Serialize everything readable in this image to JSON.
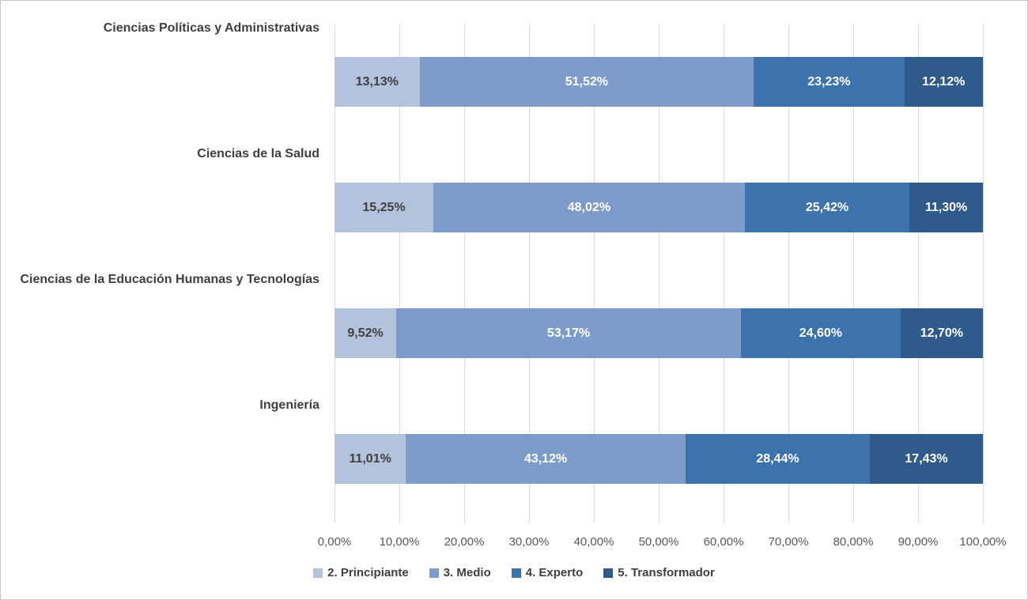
{
  "chart_data": {
    "type": "bar",
    "orientation": "horizontal",
    "stacked": true,
    "percent_total": true,
    "title": "",
    "xlabel": "",
    "ylabel": "",
    "grid": "vertical",
    "categories": [
      "Ciencias Políticas y Administrativas",
      "Ciencias de la Salud",
      "Ciencias de la Educación Humanas y  Tecnologías",
      "Ingeniería"
    ],
    "series": [
      {
        "name": "2. Principiante",
        "color": "#b4c3dc",
        "label_text_color": "#3f3f3f",
        "values": [
          13.13,
          15.25,
          9.52,
          11.01
        ],
        "data_labels": [
          "13,13%",
          "15,25%",
          "9,52%",
          "11,01%"
        ]
      },
      {
        "name": "3. Medio",
        "color": "#7e9cc9",
        "label_text_color": "#ffffff",
        "values": [
          51.52,
          48.02,
          53.17,
          43.12
        ],
        "data_labels": [
          "51,52%",
          "48,02%",
          "53,17%",
          "43,12%"
        ]
      },
      {
        "name": "4. Experto",
        "color": "#3d73ad",
        "label_text_color": "#ffffff",
        "values": [
          23.23,
          25.42,
          24.6,
          28.44
        ],
        "data_labels": [
          "23,23%",
          "25,42%",
          "24,60%",
          "28,44%"
        ]
      },
      {
        "name": "5. Transformador",
        "color": "#2f5a8c",
        "label_text_color": "#ffffff",
        "values": [
          12.12,
          11.3,
          12.7,
          17.43
        ],
        "data_labels": [
          "12,12%",
          "11,30%",
          "12,70%",
          "17,43%"
        ]
      }
    ],
    "x_axis": {
      "min": 0,
      "max": 100,
      "tick_labels": [
        "0,00%",
        "10,00%",
        "20,00%",
        "30,00%",
        "40,00%",
        "50,00%",
        "60,00%",
        "70,00%",
        "80,00%",
        "90,00%",
        "100,00%"
      ]
    },
    "legend": {
      "position": "bottom",
      "entries": [
        "2. Principiante",
        "3. Medio",
        "4. Experto",
        "5. Transformador"
      ]
    },
    "colors": {
      "category_label": "#3f3f3f",
      "axis_label": "#595959",
      "gridline": "#d9d9d9",
      "background": "#ffffff",
      "border": "#c8c8c8"
    }
  }
}
